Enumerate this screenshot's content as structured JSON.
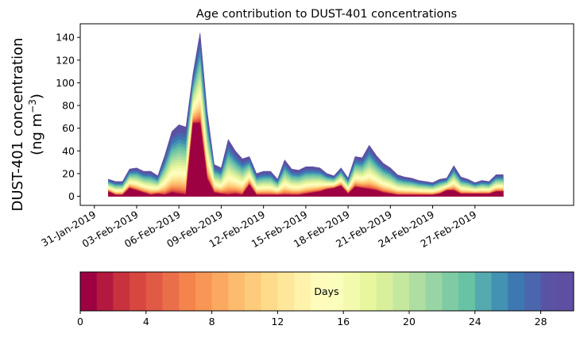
{
  "chart_data": {
    "type": "area",
    "stacked": true,
    "title": "Age contribution to DUST-401 concentrations",
    "ylabel_line1": "DUST-401 concentration",
    "ylabel_line2_prefix": "(ng m",
    "ylabel_line2_sup": "−3",
    "ylabel_line2_suffix": ")",
    "ylim": [
      -8,
      152
    ],
    "yticks": [
      0,
      20,
      40,
      60,
      80,
      100,
      120,
      140
    ],
    "x_start_day": 1,
    "x_step_days": 0.5,
    "x_range_days": [
      -1,
      34
    ],
    "xticks": [
      {
        "day": 0,
        "label": "31-Jan-2019"
      },
      {
        "day": 3,
        "label": "03-Feb-2019"
      },
      {
        "day": 6,
        "label": "06-Feb-2019"
      },
      {
        "day": 9,
        "label": "09-Feb-2019"
      },
      {
        "day": 12,
        "label": "12-Feb-2019"
      },
      {
        "day": 15,
        "label": "15-Feb-2019"
      },
      {
        "day": 18,
        "label": "18-Feb-2019"
      },
      {
        "day": 21,
        "label": "21-Feb-2019"
      },
      {
        "day": 24,
        "label": "24-Feb-2019"
      },
      {
        "day": 27,
        "label": "27-Feb-2019"
      }
    ],
    "total": [
      15,
      13,
      13,
      24,
      25,
      22,
      22,
      18,
      36,
      57,
      63,
      61,
      108,
      144,
      75,
      28,
      25,
      50,
      40,
      33,
      35,
      20,
      22,
      22,
      15,
      32,
      24,
      23,
      26,
      26,
      25,
      20,
      18,
      25,
      16,
      35,
      34,
      45,
      36,
      29,
      25,
      19,
      17,
      16,
      14,
      13,
      12,
      15,
      16,
      27,
      17,
      15,
      12,
      14,
      13,
      19,
      19
    ],
    "young": [
      4,
      1,
      1,
      7,
      5,
      3,
      1,
      2,
      1,
      3,
      2,
      1,
      64,
      64,
      15,
      3,
      2,
      1,
      2,
      1,
      10,
      1,
      1,
      1,
      1,
      1,
      1,
      1,
      2,
      3,
      4,
      6,
      7,
      9,
      2,
      8,
      7,
      6,
      5,
      3,
      2,
      1,
      1,
      1,
      1,
      1,
      1,
      2,
      5,
      5,
      2,
      2,
      2,
      2,
      2,
      4,
      4
    ],
    "colorbar": {
      "label": "Days",
      "min": 0,
      "max": 30,
      "ticks": [
        0,
        4,
        8,
        12,
        16,
        20,
        24,
        28
      ],
      "colors": [
        "#9e0142",
        "#b3193f",
        "#c8313d",
        "#d7463f",
        "#e15a46",
        "#eb6e4b",
        "#f4834c",
        "#f89655",
        "#fba861",
        "#fdbb6d",
        "#fdcb7b",
        "#fedb8b",
        "#fee79b",
        "#fff2aa",
        "#fffbbc",
        "#fbfdbb",
        "#f3faad",
        "#e8f69d",
        "#d9ef9c",
        "#c5e89f",
        "#afdea3",
        "#98d5a4",
        "#7fcba4",
        "#68c2a4",
        "#55aaaf",
        "#4391b3",
        "#3d78b2",
        "#4a66ac",
        "#5a53a5",
        "#5e4fa2"
      ]
    }
  }
}
